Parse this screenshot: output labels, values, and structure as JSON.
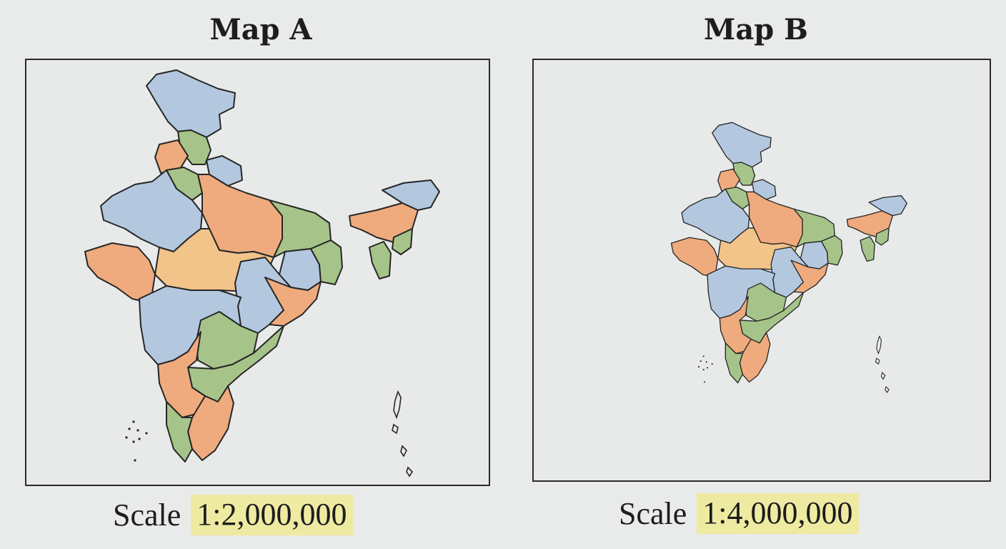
{
  "map_a": {
    "title": "Map A",
    "scale_prefix": "Scale",
    "scale_value": "1:2,000,000"
  },
  "map_b": {
    "title": "Map B",
    "scale_prefix": "Scale",
    "scale_value": "1:4,000,000"
  },
  "colors": {
    "blue": "#b3c8df",
    "orange": "#efab7d",
    "green": "#a6c489",
    "light_orange": "#f2c48a",
    "highlight": "#eeeaa2"
  }
}
